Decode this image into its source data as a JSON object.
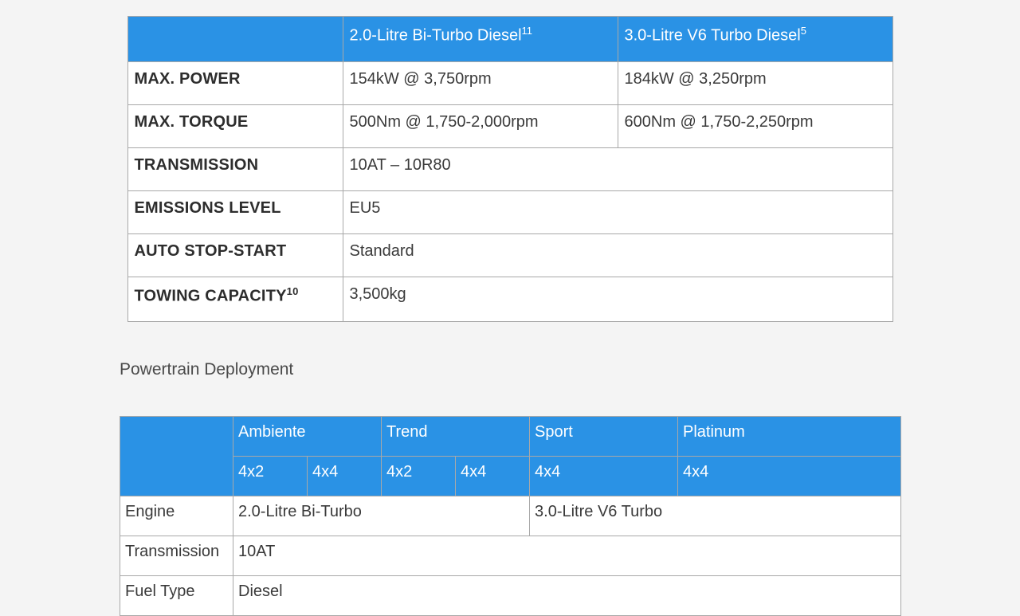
{
  "colors": {
    "header_bg": "#2a92e5",
    "header_fg": "#ffffff",
    "border": "#a8a8a8",
    "page_bg": "#f4f4f4",
    "cell_bg": "#ffffff",
    "text": "#3a3a3a"
  },
  "table1": {
    "header": {
      "blank": "",
      "col1_text": "2.0-Litre Bi-Turbo Diesel",
      "col1_sup": "11",
      "col2_text": "3.0-Litre V6 Turbo Diesel",
      "col2_sup": "5"
    },
    "rows": {
      "max_power": {
        "label": "MAX. POWER",
        "c1": "154kW @ 3,750rpm",
        "c2": "184kW @ 3,250rpm"
      },
      "max_torque": {
        "label": "MAX. TORQUE",
        "c1": "500Nm @ 1,750-2,000rpm",
        "c2": "600Nm @ 1,750-2,250rpm"
      },
      "transmission": {
        "label": "TRANSMISSION",
        "val": "10AT – 10R80"
      },
      "emissions": {
        "label": "EMISSIONS LEVEL",
        "val": "EU5"
      },
      "stopstart": {
        "label": "AUTO STOP-START",
        "val": "Standard"
      },
      "towing": {
        "label_text": "TOWING CAPACITY",
        "label_sup": "10",
        "val": "3,500kg"
      }
    }
  },
  "section_title": "Powertrain Deployment",
  "table2": {
    "header_top": {
      "blank": "",
      "ambiente": "Ambiente",
      "trend": "Trend",
      "sport": "Sport",
      "platinum": "Platinum"
    },
    "header_sub": {
      "a1": "4x2",
      "a2": "4x4",
      "t1": "4x2",
      "t2": "4x4",
      "s": "4x4",
      "p": "4x4"
    },
    "rows": {
      "engine": {
        "label": "Engine",
        "v1": "2.0-Litre Bi-Turbo",
        "v2": "3.0-Litre V6 Turbo"
      },
      "transmission": {
        "label": "Transmission",
        "val": "10AT"
      },
      "fuel": {
        "label": "Fuel Type",
        "val": "Diesel"
      }
    }
  }
}
